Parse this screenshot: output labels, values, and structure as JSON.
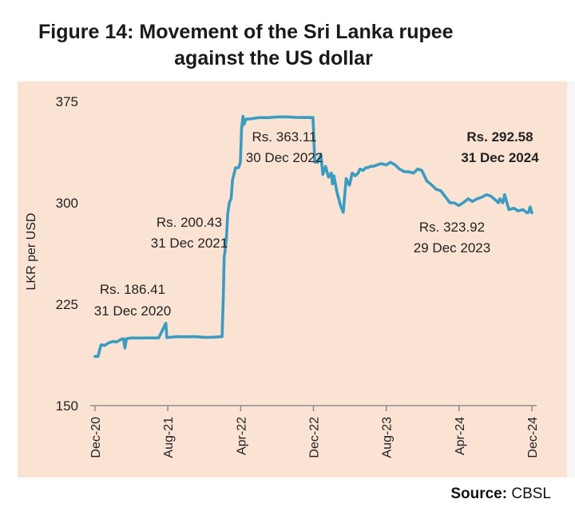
{
  "title_line1": "Figure 14: Movement of the Sri Lanka rupee",
  "title_line2": "against the US dollar",
  "source_label": "Source:",
  "source_value": "CBSL",
  "colors": {
    "line": "#3a9cc2",
    "panel": "#fbe3d4",
    "text": "#222222"
  },
  "chart_data": {
    "type": "line",
    "ylabel": "LKR per USD",
    "ylim": [
      150,
      375
    ],
    "yticks": [
      150,
      225,
      300,
      375
    ],
    "xticks": [
      "Dec-20",
      "Aug-21",
      "Apr-22",
      "Dec-22",
      "Aug-23",
      "Apr-24",
      "Dec-24"
    ],
    "xlim": [
      "2020-12-31",
      "2024-12-31"
    ],
    "grid": false,
    "series": [
      {
        "x": [
          "2020-12-31",
          "2021-01-10",
          "2021-01-20",
          "2021-02-01",
          "2021-02-15",
          "2021-03-01",
          "2021-03-12",
          "2021-03-20",
          "2021-03-28",
          "2021-04-05",
          "2021-04-10",
          "2021-04-15",
          "2021-05-01",
          "2021-05-20",
          "2021-06-10",
          "2021-07-01",
          "2021-08-01",
          "2021-08-25",
          "2021-08-28",
          "2021-09-05",
          "2021-10-01",
          "2021-11-01",
          "2021-12-01",
          "2022-01-01",
          "2022-02-01",
          "2022-03-01",
          "2022-03-05",
          "2022-03-08",
          "2022-03-10",
          "2022-03-15",
          "2022-03-20",
          "2022-03-25",
          "2022-03-31",
          "2022-04-05",
          "2022-04-15",
          "2022-04-25",
          "2022-05-01",
          "2022-05-05",
          "2022-05-10",
          "2022-05-13",
          "2022-05-20",
          "2022-06-01",
          "2022-07-01",
          "2022-08-01",
          "2022-09-01",
          "2022-10-01",
          "2022-11-01",
          "2022-12-01",
          "2022-12-30",
          "2023-01-05",
          "2023-01-15",
          "2023-01-25",
          "2023-02-01",
          "2023-02-10",
          "2023-02-20",
          "2023-03-01",
          "2023-03-05",
          "2023-03-10",
          "2023-03-20",
          "2023-04-01",
          "2023-04-10",
          "2023-04-20",
          "2023-05-01",
          "2023-05-10",
          "2023-05-20",
          "2023-05-30",
          "2023-06-05",
          "2023-06-15",
          "2023-06-25",
          "2023-07-01",
          "2023-07-10",
          "2023-07-20",
          "2023-08-01",
          "2023-08-15",
          "2023-09-01",
          "2023-09-15",
          "2023-10-01",
          "2023-10-15",
          "2023-11-01",
          "2023-11-15",
          "2023-12-01",
          "2023-12-15",
          "2023-12-29",
          "2024-01-15",
          "2024-02-01",
          "2024-02-15",
          "2024-03-01",
          "2024-03-15",
          "2024-04-01",
          "2024-04-15",
          "2024-05-01",
          "2024-05-15",
          "2024-06-01",
          "2024-06-15",
          "2024-07-01",
          "2024-07-15",
          "2024-08-01",
          "2024-08-15",
          "2024-09-01",
          "2024-09-10",
          "2024-09-15",
          "2024-09-25",
          "2024-10-01",
          "2024-10-15",
          "2024-11-01",
          "2024-11-15",
          "2024-12-01",
          "2024-12-15",
          "2024-12-20",
          "2024-12-25",
          "2024-12-31"
        ],
        "y": [
          186.4,
          186.4,
          195,
          194.5,
          196.5,
          197.5,
          197,
          198,
          199,
          199.5,
          192.5,
          199.5,
          200,
          200,
          200,
          200.1,
          200.1,
          211,
          200.4,
          200.5,
          201,
          200.9,
          201,
          200.5,
          200.6,
          201,
          230,
          260,
          263,
          273,
          292,
          300,
          303,
          317,
          326,
          326,
          330,
          355,
          364,
          358,
          362,
          362,
          363,
          363,
          363.5,
          363.6,
          363.2,
          363.1,
          363.1,
          330,
          330,
          336,
          321,
          327,
          319,
          322,
          314,
          320,
          308,
          298,
          293,
          318,
          313,
          322,
          320,
          322,
          325,
          324,
          326,
          326,
          327,
          327,
          328,
          329,
          328,
          330,
          328,
          325,
          323,
          323,
          322,
          325,
          323.9,
          316,
          313,
          310,
          309,
          305,
          300,
          300,
          298,
          300,
          303,
          301,
          303,
          304,
          306,
          305,
          302,
          300,
          303,
          300,
          306,
          295,
          296,
          294,
          295,
          292.6,
          293,
          297,
          292.6
        ]
      }
    ],
    "annotations": [
      {
        "label": "Rs. 186.41",
        "date": "31 Dec 2020"
      },
      {
        "label": "Rs. 200.43",
        "date": "31 Dec 2021"
      },
      {
        "label": "Rs. 363.11",
        "date": "30 Dec 2022"
      },
      {
        "label": "Rs. 323.92",
        "date": "29 Dec 2023"
      },
      {
        "label": "Rs. 292.58",
        "date": "31 Dec 2024",
        "bold": true
      }
    ]
  }
}
